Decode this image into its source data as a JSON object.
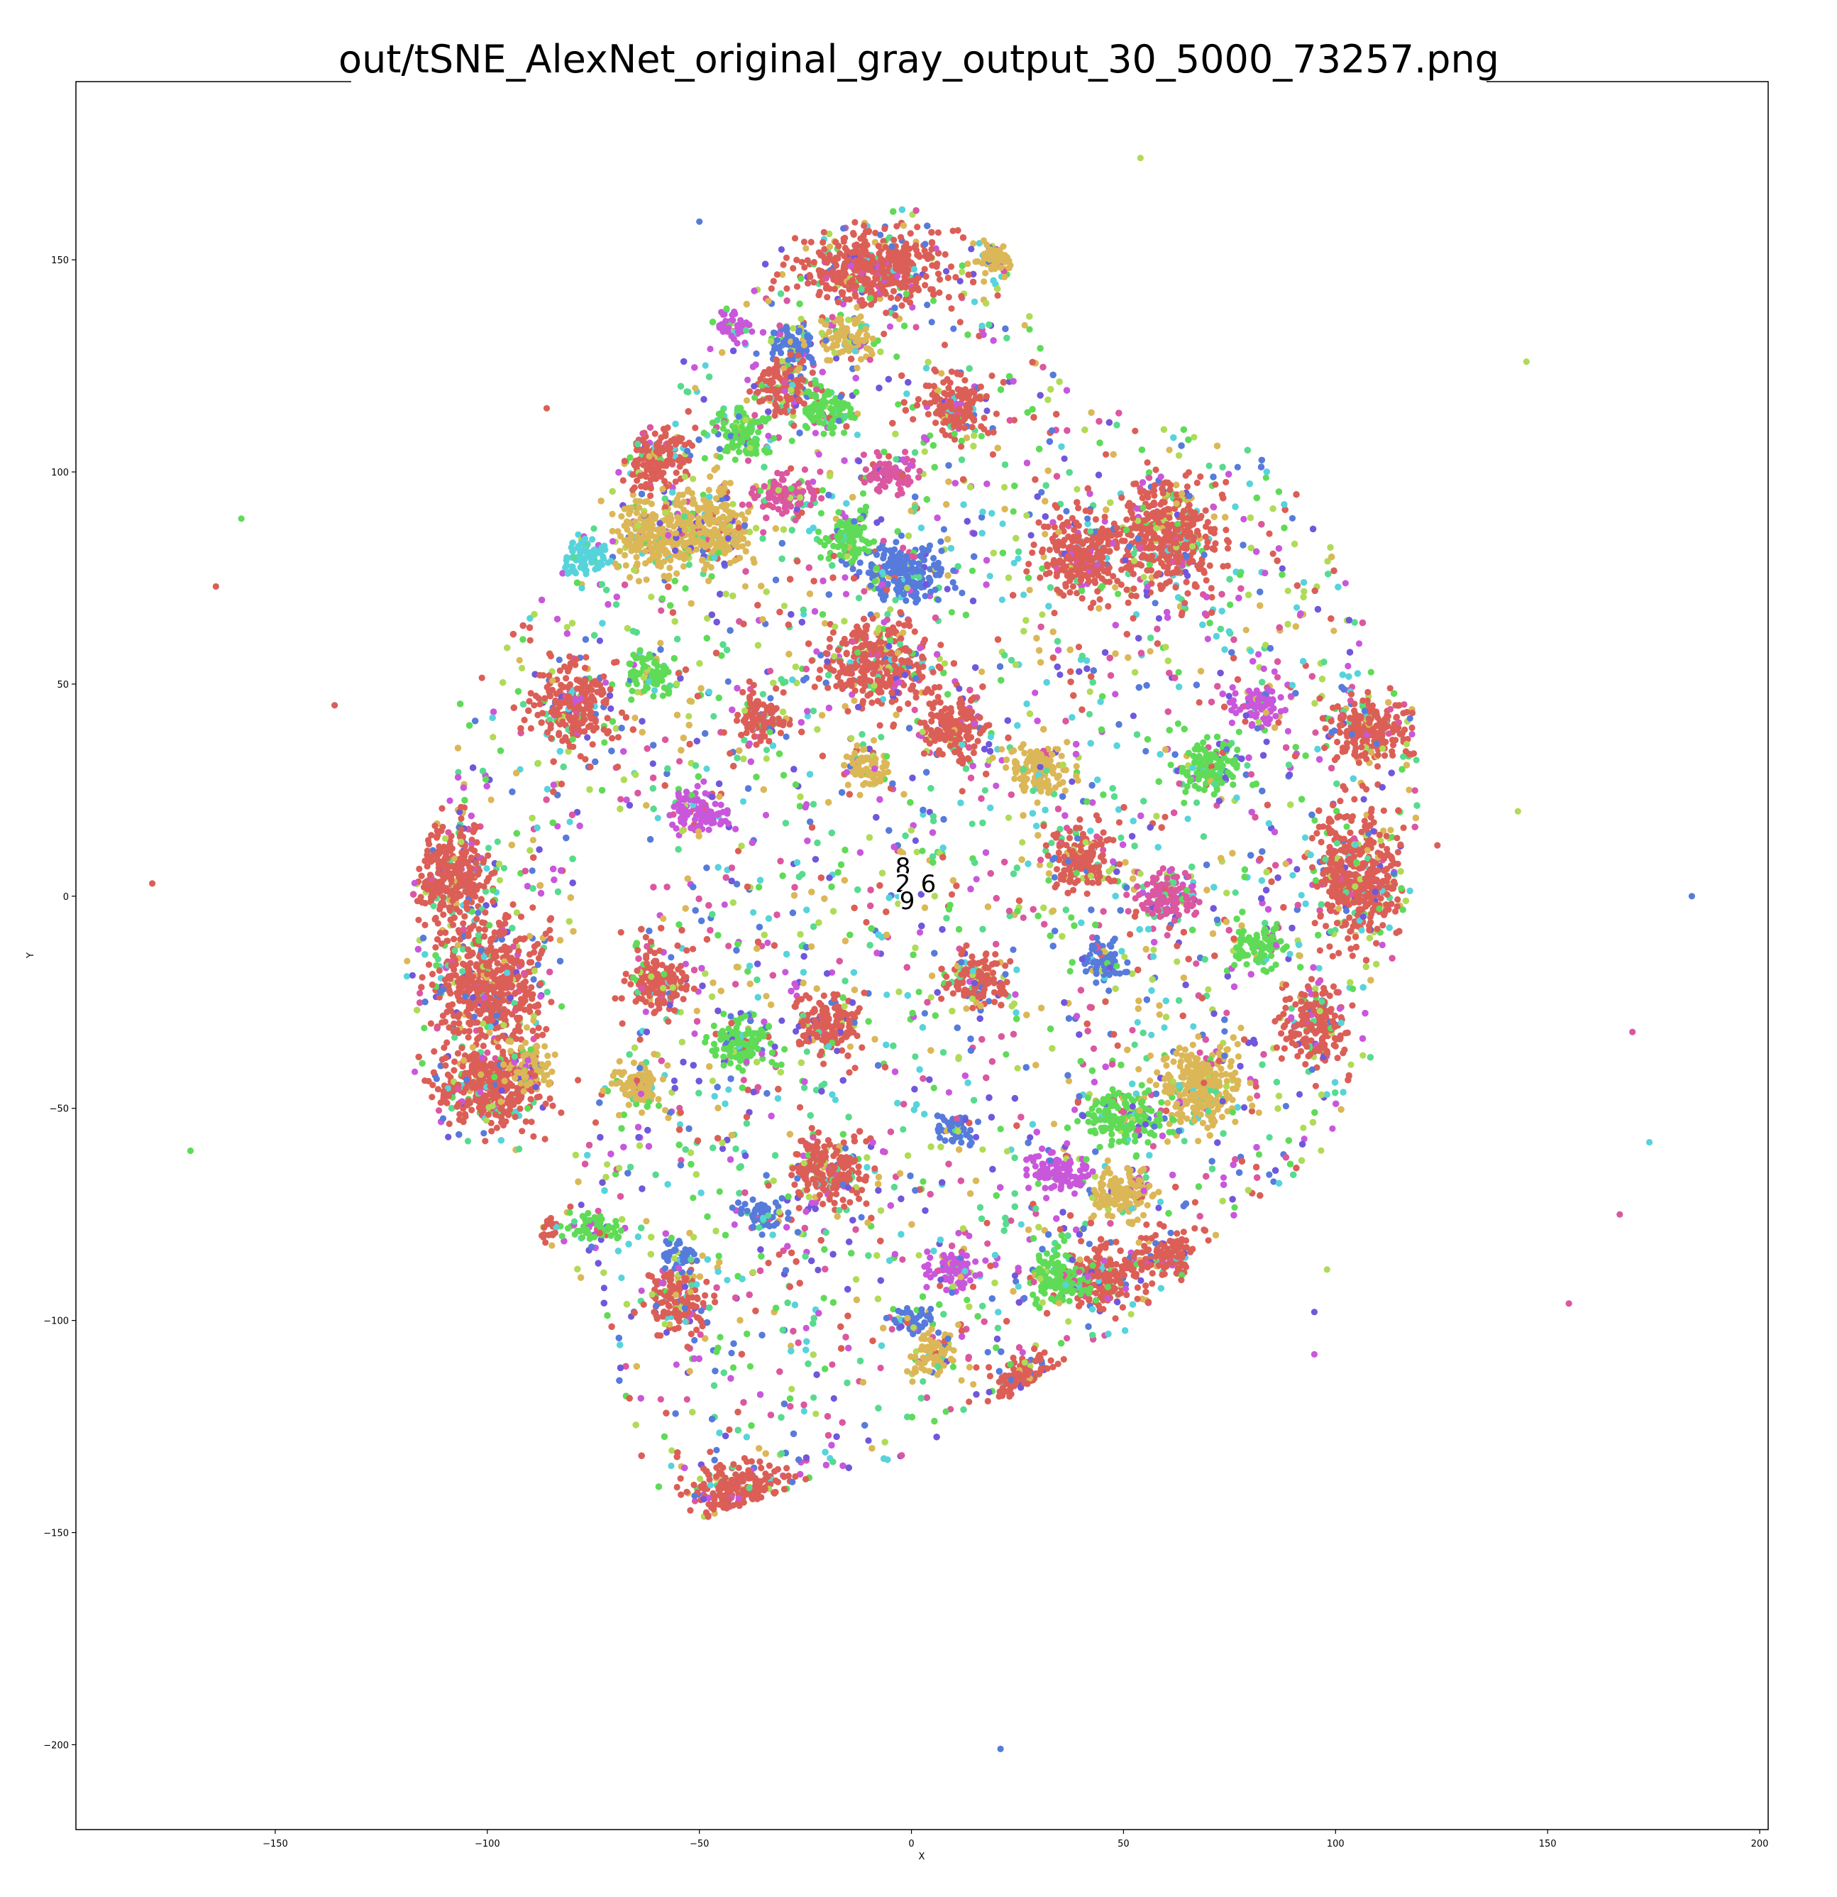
{
  "chart_data": {
    "type": "scatter",
    "title": "out/tSNE_AlexNet_original_gray_output_30_5000_73257.png",
    "xlabel": "X",
    "ylabel": "Y",
    "xlim": [
      -197,
      202
    ],
    "ylim": [
      -220,
      192
    ],
    "xticks": [
      -150,
      -100,
      -50,
      0,
      50,
      100,
      150,
      200
    ],
    "yticks": [
      -200,
      -150,
      -100,
      -50,
      0,
      50,
      100,
      150
    ],
    "grid": false,
    "legend": "none",
    "point_count_total": 73257,
    "class_colors": {
      "0": "#db5f57",
      "1": "#dbb757",
      "2": "#b0db57",
      "3": "#5fdb57",
      "4": "#57db8f",
      "5": "#57d3db",
      "6": "#577bdb",
      "7": "#7157db",
      "8": "#c957db",
      "9": "#db57a0"
    },
    "class_labels": [
      {
        "text": "8",
        "x": -2,
        "y": 7
      },
      {
        "text": "2",
        "x": -2,
        "y": 3
      },
      {
        "text": "6",
        "x": 4,
        "y": 3
      },
      {
        "text": "9",
        "x": -1,
        "y": -1
      }
    ],
    "outliers": [
      {
        "x": -158,
        "y": 89,
        "c": "3"
      },
      {
        "x": -164,
        "y": 73,
        "c": "0"
      },
      {
        "x": -136,
        "y": 45,
        "c": "0"
      },
      {
        "x": -179,
        "y": 3,
        "c": "0"
      },
      {
        "x": -170,
        "y": -60,
        "c": "3"
      },
      {
        "x": 54,
        "y": 174,
        "c": "2"
      },
      {
        "x": 145,
        "y": 126,
        "c": "2"
      },
      {
        "x": 143,
        "y": 20,
        "c": "2"
      },
      {
        "x": 184,
        "y": 0,
        "c": "6"
      },
      {
        "x": 170,
        "y": -32,
        "c": "9"
      },
      {
        "x": 174,
        "y": -58,
        "c": "5"
      },
      {
        "x": 167,
        "y": -75,
        "c": "9"
      },
      {
        "x": 155,
        "y": -96,
        "c": "9"
      },
      {
        "x": 95,
        "y": -98,
        "c": "7"
      },
      {
        "x": 95,
        "y": -108,
        "c": "8"
      },
      {
        "x": 98,
        "y": -88,
        "c": "2"
      },
      {
        "x": 21,
        "y": -201,
        "c": "6"
      },
      {
        "x": -50,
        "y": 159,
        "c": "6"
      },
      {
        "x": -86,
        "y": 115,
        "c": "0"
      },
      {
        "x": 124,
        "y": 12,
        "c": "0"
      }
    ],
    "main_cloud": {
      "description_boundary_points": [
        [
          -32,
          155
        ],
        [
          0,
          163
        ],
        [
          22,
          153
        ],
        [
          32,
          126
        ],
        [
          45,
          115
        ],
        [
          58,
          112
        ],
        [
          75,
          108
        ],
        [
          90,
          98
        ],
        [
          100,
          80
        ],
        [
          110,
          60
        ],
        [
          118,
          45
        ],
        [
          121,
          15
        ],
        [
          115,
          -10
        ],
        [
          108,
          -40
        ],
        [
          100,
          -58
        ],
        [
          85,
          -70
        ],
        [
          72,
          -82
        ],
        [
          60,
          -95
        ],
        [
          50,
          -103
        ],
        [
          35,
          -110
        ],
        [
          20,
          -120
        ],
        [
          5,
          -130
        ],
        [
          -10,
          -135
        ],
        [
          -30,
          -140
        ],
        [
          -50,
          -147
        ],
        [
          -62,
          -140
        ],
        [
          -68,
          -120
        ],
        [
          -72,
          -100
        ],
        [
          -88,
          -80
        ],
        [
          -80,
          -62
        ],
        [
          -110,
          -57
        ],
        [
          -118,
          -40
        ],
        [
          -120,
          -15
        ],
        [
          -117,
          5
        ],
        [
          -110,
          25
        ],
        [
          -108,
          45
        ],
        [
          -96,
          60
        ],
        [
          -84,
          75
        ],
        [
          -78,
          88
        ],
        [
          -64,
          108
        ],
        [
          -52,
          132
        ],
        [
          -40,
          145
        ]
      ]
    },
    "clusters": [
      {
        "c": "6",
        "cx": -28,
        "cy": 130,
        "rx": 5,
        "ry": 4
      },
      {
        "c": "8",
        "cx": -42,
        "cy": 134,
        "rx": 4,
        "ry": 3
      },
      {
        "c": "0",
        "cx": -10,
        "cy": 148,
        "rx": 14,
        "ry": 7
      },
      {
        "c": "1",
        "cx": -60,
        "cy": 85,
        "rx": 8,
        "ry": 7
      },
      {
        "c": "1",
        "cx": -47,
        "cy": 87,
        "rx": 7,
        "ry": 8
      },
      {
        "c": "0",
        "cx": -60,
        "cy": 103,
        "rx": 6,
        "ry": 6
      },
      {
        "c": "3",
        "cx": -40,
        "cy": 110,
        "rx": 5,
        "ry": 5
      },
      {
        "c": "6",
        "cx": -2,
        "cy": 76,
        "rx": 8,
        "ry": 6
      },
      {
        "c": "3",
        "cx": -15,
        "cy": 85,
        "rx": 5,
        "ry": 5
      },
      {
        "c": "0",
        "cx": -8,
        "cy": 55,
        "rx": 10,
        "ry": 8
      },
      {
        "c": "3",
        "cx": -62,
        "cy": 52,
        "rx": 5,
        "ry": 4
      },
      {
        "c": "0",
        "cx": -36,
        "cy": 42,
        "rx": 5,
        "ry": 5
      },
      {
        "c": "0",
        "cx": -80,
        "cy": 45,
        "rx": 7,
        "ry": 8
      },
      {
        "c": "0",
        "cx": -108,
        "cy": 5,
        "rx": 7,
        "ry": 10
      },
      {
        "c": "0",
        "cx": -100,
        "cy": -20,
        "rx": 10,
        "ry": 12
      },
      {
        "c": "0",
        "cx": -100,
        "cy": -45,
        "rx": 10,
        "ry": 8
      },
      {
        "c": "1",
        "cx": -90,
        "cy": -40,
        "rx": 4,
        "ry": 5
      },
      {
        "c": "5",
        "cx": -78,
        "cy": 80,
        "rx": 5,
        "ry": 4
      },
      {
        "c": "0",
        "cx": 60,
        "cy": 85,
        "rx": 10,
        "ry": 10
      },
      {
        "c": "0",
        "cx": 40,
        "cy": 80,
        "rx": 8,
        "ry": 8
      },
      {
        "c": "3",
        "cx": 82,
        "cy": -12,
        "rx": 5,
        "ry": 4
      },
      {
        "c": "0",
        "cx": 105,
        "cy": 5,
        "rx": 8,
        "ry": 12
      },
      {
        "c": "0",
        "cx": 108,
        "cy": 40,
        "rx": 8,
        "ry": 6
      },
      {
        "c": "1",
        "cx": 68,
        "cy": -45,
        "rx": 8,
        "ry": 8
      },
      {
        "c": "0",
        "cx": 95,
        "cy": -30,
        "rx": 6,
        "ry": 8
      },
      {
        "c": "3",
        "cx": 50,
        "cy": -52,
        "rx": 8,
        "ry": 5
      },
      {
        "c": "0",
        "cx": -20,
        "cy": -65,
        "rx": 8,
        "ry": 6
      },
      {
        "c": "0",
        "cx": 45,
        "cy": -90,
        "rx": 7,
        "ry": 6
      },
      {
        "c": "0",
        "cx": 60,
        "cy": -85,
        "rx": 6,
        "ry": 5
      },
      {
        "c": "1",
        "cx": 50,
        "cy": -70,
        "rx": 6,
        "ry": 5
      },
      {
        "c": "8",
        "cx": 35,
        "cy": -65,
        "rx": 6,
        "ry": 4
      },
      {
        "c": "3",
        "cx": 35,
        "cy": -90,
        "rx": 6,
        "ry": 5
      },
      {
        "c": "0",
        "cx": 28,
        "cy": -115,
        "rx": 8,
        "ry": 6
      },
      {
        "c": "0",
        "cx": -40,
        "cy": -140,
        "rx": 10,
        "ry": 6
      },
      {
        "c": "6",
        "cx": 10,
        "cy": -55,
        "rx": 4,
        "ry": 3
      },
      {
        "c": "6",
        "cx": -35,
        "cy": -75,
        "rx": 4,
        "ry": 3
      },
      {
        "c": "6",
        "cx": 0,
        "cy": -100,
        "rx": 4,
        "ry": 3
      },
      {
        "c": "1",
        "cx": 5,
        "cy": -108,
        "rx": 5,
        "ry": 4
      },
      {
        "c": "8",
        "cx": 10,
        "cy": -88,
        "rx": 5,
        "ry": 4
      },
      {
        "c": "3",
        "cx": -75,
        "cy": -78,
        "rx": 5,
        "ry": 3
      },
      {
        "c": "0",
        "cx": -88,
        "cy": -78,
        "rx": 4,
        "ry": 4
      },
      {
        "c": "0",
        "cx": -30,
        "cy": 120,
        "rx": 6,
        "ry": 5
      },
      {
        "c": "1",
        "cx": -15,
        "cy": 132,
        "rx": 6,
        "ry": 4
      },
      {
        "c": "3",
        "cx": -20,
        "cy": 114,
        "rx": 6,
        "ry": 4
      },
      {
        "c": "9",
        "cx": -30,
        "cy": 95,
        "rx": 6,
        "ry": 4
      },
      {
        "c": "8",
        "cx": -63,
        "cy": 120,
        "rx": 3,
        "ry": 3
      },
      {
        "c": "0",
        "cx": 10,
        "cy": 115,
        "rx": 6,
        "ry": 6
      },
      {
        "c": "1",
        "cx": 20,
        "cy": 150,
        "rx": 4,
        "ry": 4
      },
      {
        "c": "0",
        "cx": 10,
        "cy": 40,
        "rx": 6,
        "ry": 6
      },
      {
        "c": "1",
        "cx": -10,
        "cy": 30,
        "rx": 4,
        "ry": 4
      },
      {
        "c": "8",
        "cx": -50,
        "cy": 20,
        "rx": 6,
        "ry": 4
      },
      {
        "c": "0",
        "cx": -20,
        "cy": -30,
        "rx": 6,
        "ry": 6
      },
      {
        "c": "0",
        "cx": 15,
        "cy": -20,
        "rx": 6,
        "ry": 5
      },
      {
        "c": "0",
        "cx": 40,
        "cy": 10,
        "rx": 6,
        "ry": 6
      },
      {
        "c": "1",
        "cx": 30,
        "cy": 30,
        "rx": 6,
        "ry": 5
      },
      {
        "c": "3",
        "cx": 70,
        "cy": 30,
        "rx": 6,
        "ry": 5
      },
      {
        "c": "8",
        "cx": 82,
        "cy": 45,
        "rx": 5,
        "ry": 4
      },
      {
        "c": "9",
        "cx": 60,
        "cy": 0,
        "rx": 6,
        "ry": 5
      },
      {
        "c": "6",
        "cx": 45,
        "cy": -15,
        "rx": 4,
        "ry": 4
      },
      {
        "c": "0",
        "cx": -55,
        "cy": -95,
        "rx": 6,
        "ry": 6
      },
      {
        "c": "6",
        "cx": -55,
        "cy": -85,
        "rx": 4,
        "ry": 3
      },
      {
        "c": "0",
        "cx": -60,
        "cy": -20,
        "rx": 6,
        "ry": 6
      },
      {
        "c": "3",
        "cx": -40,
        "cy": -35,
        "rx": 6,
        "ry": 5
      },
      {
        "c": "1",
        "cx": -65,
        "cy": -45,
        "rx": 5,
        "ry": 4
      },
      {
        "c": "9",
        "cx": -5,
        "cy": 100,
        "rx": 5,
        "ry": 4
      }
    ]
  }
}
